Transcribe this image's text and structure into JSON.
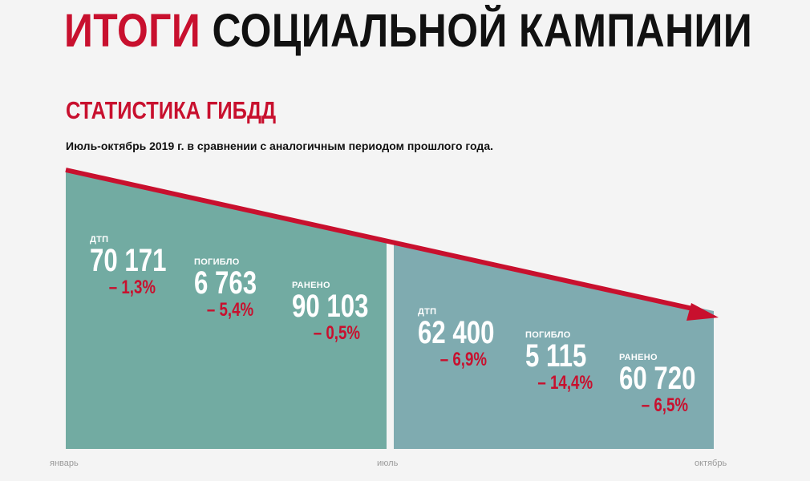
{
  "header": {
    "title_red": "ИТОГИ",
    "title_black": "СОЦИАЛЬНОЙ КАМПАНИИ",
    "subtitle": "СТАТИСТИКА ГИБДД",
    "note": "Июль-октябрь 2019 г. в сравнении с аналогичным периодом прошлого года."
  },
  "colors": {
    "accent_red": "#c8102e",
    "panel_left": "#72aba2",
    "panel_right": "#7fabb0"
  },
  "chart_data": {
    "type": "area",
    "x_ticks": [
      "январь",
      "июль",
      "октябрь"
    ],
    "trend": "decreasing",
    "periods": [
      {
        "stats": [
          {
            "label": "ДТП",
            "value": "70 171",
            "change": "– 1,3%"
          },
          {
            "label": "ПОГИБЛО",
            "value": "6 763",
            "change": "– 5,4%"
          },
          {
            "label": "РАНЕНО",
            "value": "90 103",
            "change": "– 0,5%"
          }
        ]
      },
      {
        "stats": [
          {
            "label": "ДТП",
            "value": "62 400",
            "change": "– 6,9%"
          },
          {
            "label": "ПОГИБЛО",
            "value": "5 115",
            "change": "– 14,4%"
          },
          {
            "label": "РАНЕНО",
            "value": "60 720",
            "change": "– 6,5%"
          }
        ]
      }
    ]
  }
}
